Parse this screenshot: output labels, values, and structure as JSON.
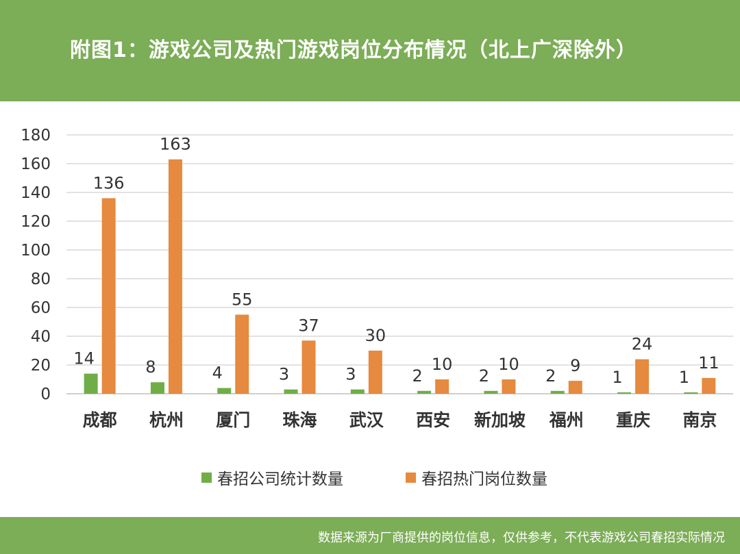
{
  "header": {
    "title": "附图1：游戏公司及热门游戏岗位分布情况（北上广深除外）"
  },
  "footer": {
    "note": "数据来源为厂商提供的岗位信息，仅供参考，不代表游戏公司春招实际情况"
  },
  "colors": {
    "header_bg": "#7cad57",
    "series_companies": "#70ad47",
    "series_positions": "#e58a3f",
    "gridline": "#d9d9d9"
  },
  "chart_data": {
    "type": "bar",
    "title": "",
    "xlabel": "",
    "ylabel": "",
    "ylim": [
      0,
      180
    ],
    "yticks": [
      0,
      20,
      40,
      60,
      80,
      100,
      120,
      140,
      160,
      180
    ],
    "grid": true,
    "legend_position": "bottom",
    "categories": [
      "成都",
      "杭州",
      "厦门",
      "珠海",
      "武汉",
      "西安",
      "新加坡",
      "福州",
      "重庆",
      "南京"
    ],
    "series": [
      {
        "name": "春招公司统计数量",
        "color": "#70ad47",
        "values": [
          14,
          8,
          4,
          3,
          3,
          2,
          2,
          2,
          1,
          1
        ]
      },
      {
        "name": "春招热门岗位数量",
        "color": "#e58a3f",
        "values": [
          136,
          163,
          55,
          37,
          30,
          10,
          10,
          9,
          24,
          11
        ]
      }
    ]
  }
}
